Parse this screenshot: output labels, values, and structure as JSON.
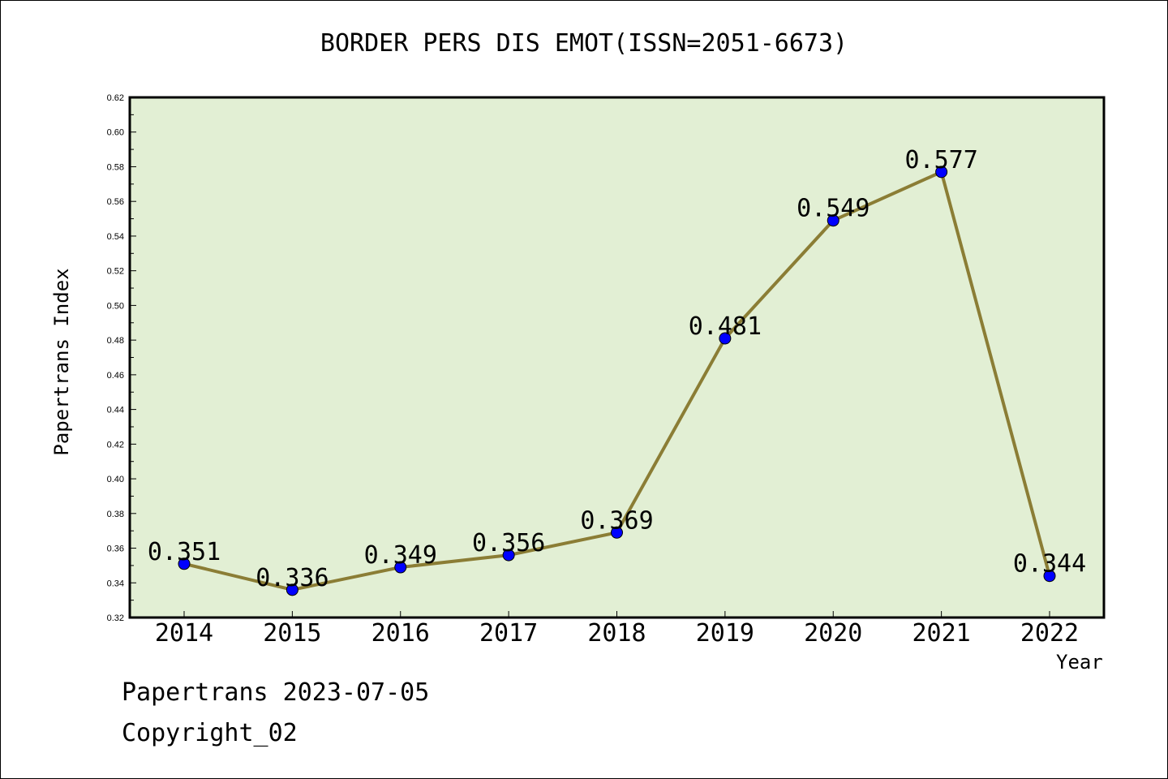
{
  "title": "BORDER PERS DIS EMOT(ISSN=2051-6673)",
  "footer": {
    "line1": "Papertrans 2023-07-05",
    "line2": "Copyright_02"
  },
  "colors": {
    "plot_background": "#e2efd4",
    "line": "#8b7d35",
    "marker": "#0000ff"
  },
  "chart_data": {
    "type": "line",
    "title": "BORDER PERS DIS EMOT(ISSN=2051-6673)",
    "xlabel": "Year",
    "ylabel": "Papertrans Index",
    "categories": [
      "2014",
      "2015",
      "2016",
      "2017",
      "2018",
      "2019",
      "2020",
      "2021",
      "2022"
    ],
    "values": [
      0.351,
      0.336,
      0.349,
      0.356,
      0.369,
      0.481,
      0.549,
      0.577,
      0.344
    ],
    "data_labels": [
      "0.351",
      "0.336",
      "0.349",
      "0.356",
      "0.369",
      "0.481",
      "0.549",
      "0.577",
      "0.344"
    ],
    "ylim": [
      0.32,
      0.62
    ],
    "yticks": [
      "0.32",
      "0.34",
      "0.36",
      "0.38",
      "0.40",
      "0.42",
      "0.44",
      "0.46",
      "0.48",
      "0.50",
      "0.52",
      "0.54",
      "0.56",
      "0.58",
      "0.60",
      "0.62"
    ],
    "grid": false,
    "legend": "none"
  }
}
